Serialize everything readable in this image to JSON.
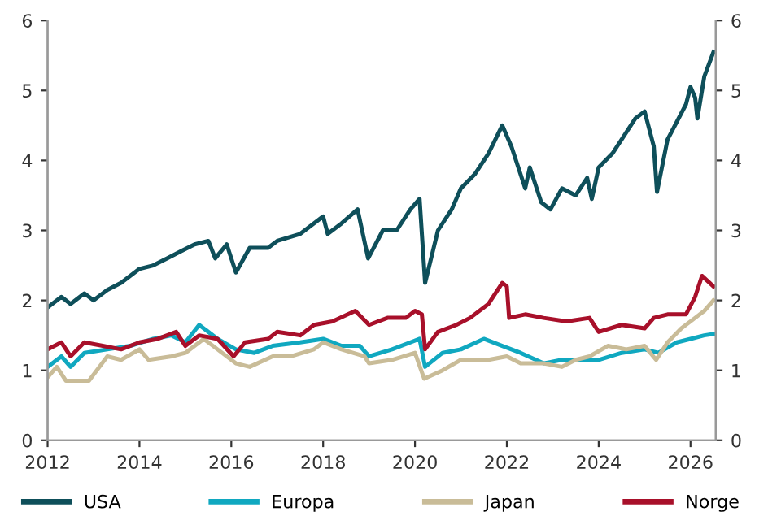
{
  "chart_data": {
    "type": "line",
    "xlim": [
      2012,
      2026.55
    ],
    "xticks": [
      2012,
      2014,
      2016,
      2018,
      2020,
      2022,
      2024,
      2026
    ],
    "ylim": [
      0,
      6
    ],
    "yticks": [
      0,
      1,
      2,
      3,
      4,
      5,
      6
    ],
    "y2lim": [
      0,
      6
    ],
    "y2ticks": [
      0,
      1,
      2,
      3,
      4,
      5,
      6
    ],
    "grid": false,
    "legend": "bottom",
    "marker": "none",
    "line_style": "solid",
    "series": [
      {
        "name": "USA",
        "color": "#0e4f5a",
        "x": [
          2012.0,
          2012.3,
          2012.5,
          2012.8,
          2013.0,
          2013.3,
          2013.6,
          2014.0,
          2014.3,
          2014.6,
          2014.9,
          2015.2,
          2015.5,
          2015.65,
          2015.9,
          2016.1,
          2016.4,
          2016.8,
          2017.0,
          2017.5,
          2018.0,
          2018.1,
          2018.4,
          2018.75,
          2018.98,
          2019.3,
          2019.6,
          2019.9,
          2020.1,
          2020.22,
          2020.5,
          2020.8,
          2021.0,
          2021.3,
          2021.6,
          2021.9,
          2022.1,
          2022.4,
          2022.5,
          2022.75,
          2022.95,
          2023.2,
          2023.5,
          2023.75,
          2023.85,
          2024.0,
          2024.3,
          2024.5,
          2024.8,
          2025.0,
          2025.2,
          2025.27,
          2025.5,
          2025.9,
          2026.0,
          2026.1,
          2026.15,
          2026.3,
          2026.5
        ],
        "values": [
          1.9,
          2.05,
          1.95,
          2.1,
          2.0,
          2.15,
          2.25,
          2.45,
          2.5,
          2.6,
          2.7,
          2.8,
          2.85,
          2.6,
          2.8,
          2.4,
          2.75,
          2.75,
          2.85,
          2.95,
          3.2,
          2.95,
          3.1,
          3.3,
          2.6,
          3.0,
          3.0,
          3.3,
          3.45,
          2.25,
          3.0,
          3.3,
          3.6,
          3.8,
          4.1,
          4.5,
          4.2,
          3.6,
          3.9,
          3.4,
          3.3,
          3.6,
          3.5,
          3.75,
          3.45,
          3.9,
          4.1,
          4.3,
          4.6,
          4.7,
          4.2,
          3.55,
          4.3,
          4.8,
          5.05,
          4.9,
          4.6,
          5.2,
          5.55
        ]
      },
      {
        "name": "Europa",
        "color": "#10a8c0",
        "x": [
          2012.0,
          2012.3,
          2012.5,
          2012.8,
          2013.3,
          2013.8,
          2014.3,
          2014.7,
          2015.0,
          2015.3,
          2015.7,
          2016.1,
          2016.5,
          2016.9,
          2017.5,
          2018.0,
          2018.4,
          2018.8,
          2019.0,
          2019.5,
          2020.1,
          2020.22,
          2020.6,
          2021.0,
          2021.5,
          2021.9,
          2022.3,
          2022.8,
          2023.2,
          2023.6,
          2024.0,
          2024.5,
          2025.0,
          2025.3,
          2025.7,
          2026.0,
          2026.3,
          2026.5
        ],
        "values": [
          1.05,
          1.2,
          1.05,
          1.25,
          1.3,
          1.35,
          1.45,
          1.5,
          1.4,
          1.65,
          1.45,
          1.3,
          1.25,
          1.35,
          1.4,
          1.45,
          1.35,
          1.35,
          1.2,
          1.3,
          1.45,
          1.05,
          1.25,
          1.3,
          1.45,
          1.35,
          1.25,
          1.1,
          1.15,
          1.15,
          1.15,
          1.25,
          1.3,
          1.25,
          1.4,
          1.45,
          1.5,
          1.52
        ]
      },
      {
        "name": "Japan",
        "color": "#c9bc98",
        "x": [
          2012.0,
          2012.2,
          2012.4,
          2012.9,
          2013.3,
          2013.6,
          2014.0,
          2014.2,
          2014.7,
          2015.0,
          2015.4,
          2015.7,
          2016.1,
          2016.4,
          2016.9,
          2017.3,
          2017.8,
          2018.0,
          2018.4,
          2018.9,
          2019.0,
          2019.5,
          2020.0,
          2020.2,
          2020.6,
          2021.0,
          2021.6,
          2022.0,
          2022.3,
          2022.8,
          2023.2,
          2023.5,
          2023.8,
          2024.2,
          2024.6,
          2025.0,
          2025.25,
          2025.5,
          2025.8,
          2026.1,
          2026.3,
          2026.5
        ],
        "values": [
          0.9,
          1.05,
          0.85,
          0.85,
          1.2,
          1.15,
          1.3,
          1.15,
          1.2,
          1.25,
          1.45,
          1.3,
          1.1,
          1.05,
          1.2,
          1.2,
          1.3,
          1.4,
          1.3,
          1.2,
          1.1,
          1.15,
          1.25,
          0.88,
          1.0,
          1.15,
          1.15,
          1.2,
          1.1,
          1.1,
          1.05,
          1.15,
          1.2,
          1.35,
          1.3,
          1.35,
          1.15,
          1.4,
          1.6,
          1.75,
          1.85,
          2.0
        ]
      },
      {
        "name": "Norge",
        "color": "#a8102a",
        "x": [
          2012.0,
          2012.3,
          2012.5,
          2012.8,
          2013.2,
          2013.6,
          2014.0,
          2014.4,
          2014.8,
          2015.0,
          2015.3,
          2015.7,
          2016.05,
          2016.3,
          2016.8,
          2017.0,
          2017.5,
          2017.8,
          2018.2,
          2018.7,
          2019.0,
          2019.4,
          2019.8,
          2020.0,
          2020.15,
          2020.22,
          2020.5,
          2020.9,
          2021.2,
          2021.6,
          2021.9,
          2022.0,
          2022.05,
          2022.4,
          2022.8,
          2023.3,
          2023.8,
          2024.0,
          2024.5,
          2025.0,
          2025.2,
          2025.5,
          2025.9,
          2026.1,
          2026.25,
          2026.5
        ],
        "values": [
          1.3,
          1.4,
          1.2,
          1.4,
          1.35,
          1.3,
          1.4,
          1.45,
          1.55,
          1.35,
          1.5,
          1.45,
          1.2,
          1.4,
          1.45,
          1.55,
          1.5,
          1.65,
          1.7,
          1.85,
          1.65,
          1.75,
          1.75,
          1.85,
          1.8,
          1.3,
          1.55,
          1.65,
          1.75,
          1.95,
          2.25,
          2.2,
          1.75,
          1.8,
          1.75,
          1.7,
          1.75,
          1.55,
          1.65,
          1.6,
          1.75,
          1.8,
          1.8,
          2.05,
          2.35,
          2.2
        ]
      }
    ]
  }
}
